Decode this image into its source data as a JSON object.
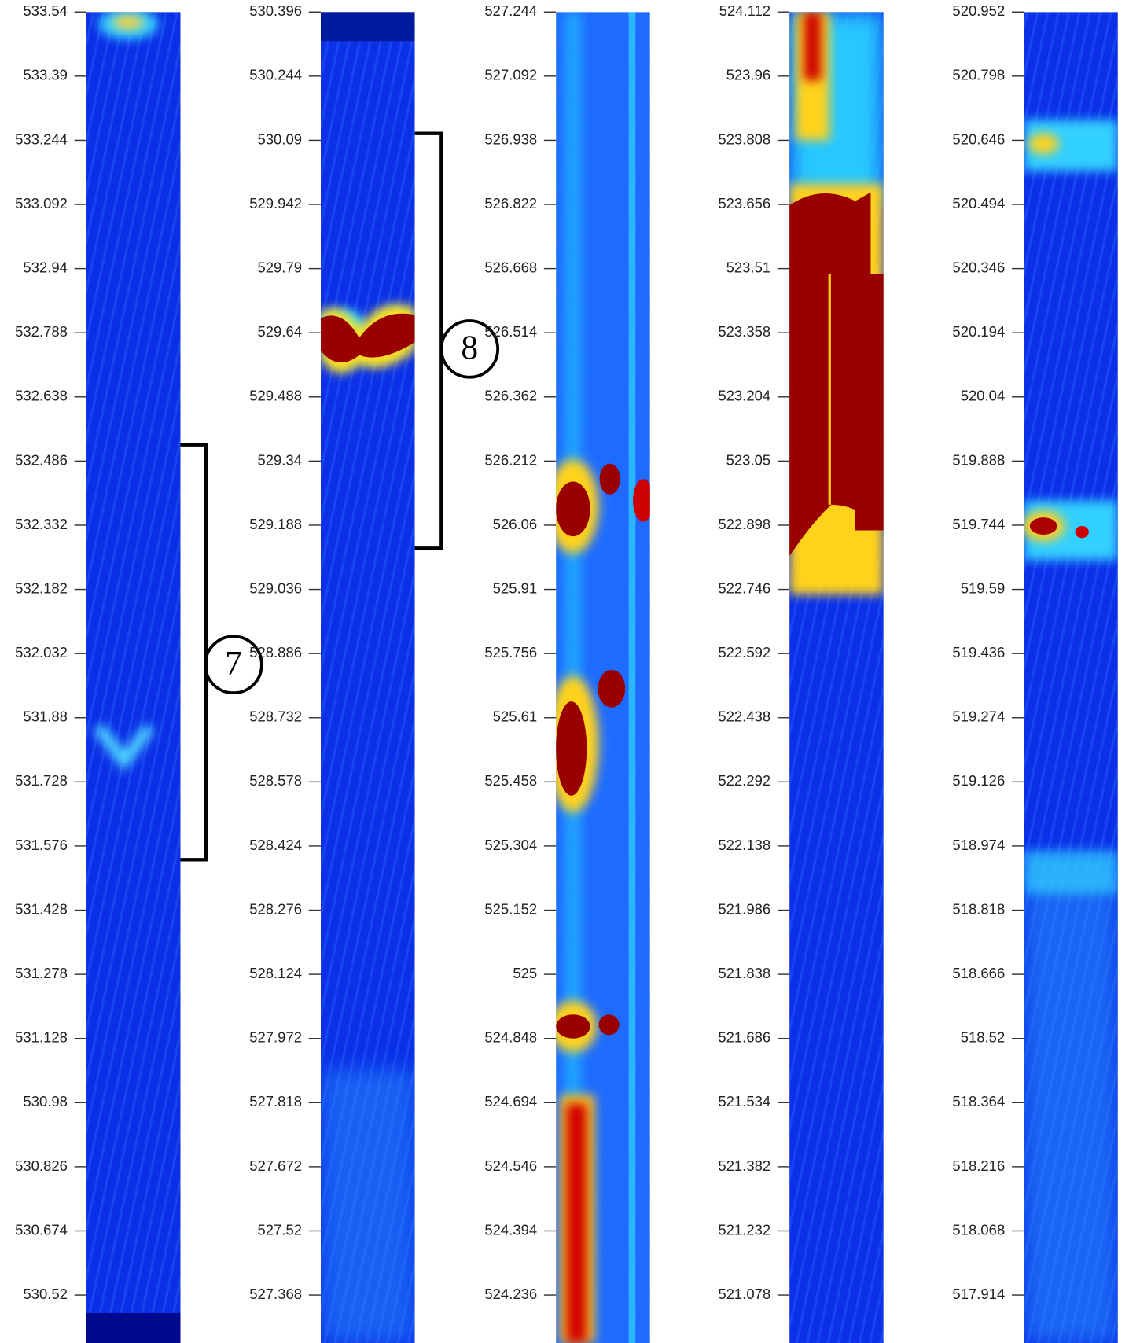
{
  "panels": [
    {
      "ticks": [
        "533.54",
        "533.39",
        "533.244",
        "533.092",
        "532.94",
        "532.788",
        "532.638",
        "532.486",
        "532.332",
        "532.182",
        "532.032",
        "531.88",
        "531.728",
        "531.576",
        "531.428",
        "531.278",
        "531.128",
        "530.98",
        "530.826",
        "530.674",
        "530.52"
      ]
    },
    {
      "ticks": [
        "530.396",
        "530.244",
        "530.09",
        "529.942",
        "529.79",
        "529.64",
        "529.488",
        "529.34",
        "529.188",
        "529.036",
        "528.886",
        "528.732",
        "528.578",
        "528.424",
        "528.276",
        "528.124",
        "527.972",
        "527.818",
        "527.672",
        "527.52",
        "527.368"
      ]
    },
    {
      "ticks": [
        "527.244",
        "527.092",
        "526.938",
        "526.822",
        "526.668",
        "526.514",
        "526.362",
        "526.212",
        "526.06",
        "525.91",
        "525.756",
        "525.61",
        "525.458",
        "525.304",
        "525.152",
        "525",
        "524.848",
        "524.694",
        "524.546",
        "524.394",
        "524.236"
      ]
    },
    {
      "ticks": [
        "524.112",
        "523.96",
        "523.808",
        "523.656",
        "523.51",
        "523.358",
        "523.204",
        "523.05",
        "522.898",
        "522.746",
        "522.592",
        "522.438",
        "522.292",
        "522.138",
        "521.986",
        "521.838",
        "521.686",
        "521.534",
        "521.382",
        "521.232",
        "521.078"
      ]
    },
    {
      "ticks": [
        "520.952",
        "520.798",
        "520.646",
        "520.494",
        "520.346",
        "520.194",
        "520.04",
        "519.888",
        "519.744",
        "519.59",
        "519.436",
        "519.274",
        "519.126",
        "518.974",
        "518.818",
        "518.666",
        "518.52",
        "518.364",
        "518.216",
        "518.068",
        "517.914"
      ]
    }
  ],
  "annotations": [
    {
      "label": "7"
    },
    {
      "label": "8"
    }
  ]
}
